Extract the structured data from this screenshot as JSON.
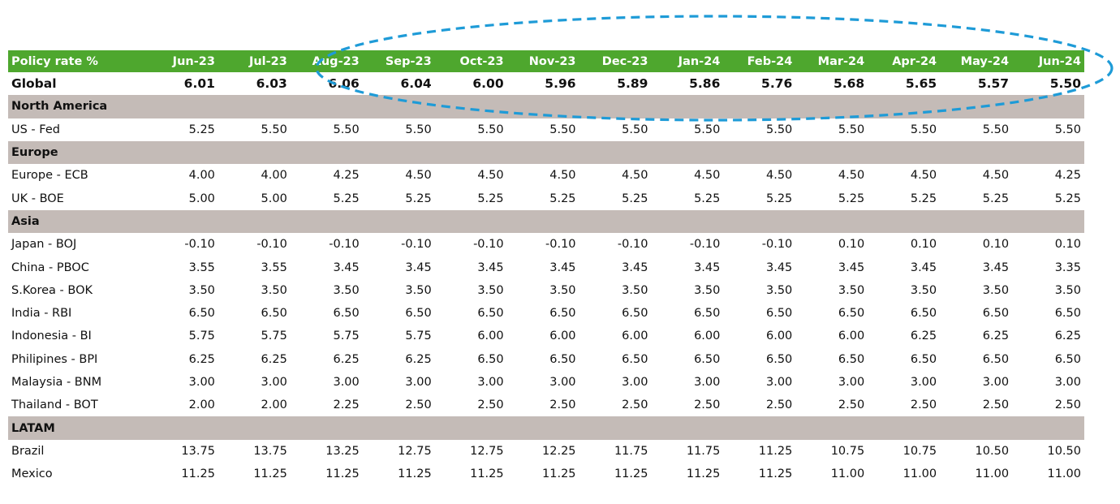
{
  "table": {
    "header_label": "Policy rate %",
    "months": [
      "Jun-23",
      "Jul-23",
      "Aug-23",
      "Sep-23",
      "Oct-23",
      "Nov-23",
      "Dec-23",
      "Jan-24",
      "Feb-24",
      "Mar-24",
      "Apr-24",
      "May-24",
      "Jun-24"
    ],
    "colors": {
      "header_bg": "#4ea72e",
      "header_text": "#ffffff",
      "region_bg": "#c4bbb7",
      "highlight": "#1e9bd7"
    },
    "rows": [
      {
        "kind": "global",
        "label": "Global",
        "values": [
          "6.01",
          "6.03",
          "6.06",
          "6.04",
          "6.00",
          "5.96",
          "5.89",
          "5.86",
          "5.76",
          "5.68",
          "5.65",
          "5.57",
          "5.50"
        ]
      },
      {
        "kind": "region",
        "label": "North America"
      },
      {
        "kind": "data",
        "label": "US - Fed",
        "values": [
          "5.25",
          "5.50",
          "5.50",
          "5.50",
          "5.50",
          "5.50",
          "5.50",
          "5.50",
          "5.50",
          "5.50",
          "5.50",
          "5.50",
          "5.50"
        ]
      },
      {
        "kind": "region",
        "label": "Europe"
      },
      {
        "kind": "data",
        "label": "Europe - ECB",
        "values": [
          "4.00",
          "4.00",
          "4.25",
          "4.50",
          "4.50",
          "4.50",
          "4.50",
          "4.50",
          "4.50",
          "4.50",
          "4.50",
          "4.50",
          "4.25"
        ]
      },
      {
        "kind": "data",
        "label": "UK - BOE",
        "values": [
          "5.00",
          "5.00",
          "5.25",
          "5.25",
          "5.25",
          "5.25",
          "5.25",
          "5.25",
          "5.25",
          "5.25",
          "5.25",
          "5.25",
          "5.25"
        ]
      },
      {
        "kind": "region",
        "label": "Asia"
      },
      {
        "kind": "data",
        "label": "Japan - BOJ",
        "values": [
          "-0.10",
          "-0.10",
          "-0.10",
          "-0.10",
          "-0.10",
          "-0.10",
          "-0.10",
          "-0.10",
          "-0.10",
          "0.10",
          "0.10",
          "0.10",
          "0.10"
        ]
      },
      {
        "kind": "data",
        "label": "China - PBOC",
        "values": [
          "3.55",
          "3.55",
          "3.45",
          "3.45",
          "3.45",
          "3.45",
          "3.45",
          "3.45",
          "3.45",
          "3.45",
          "3.45",
          "3.45",
          "3.35"
        ]
      },
      {
        "kind": "data",
        "label": "S.Korea - BOK",
        "values": [
          "3.50",
          "3.50",
          "3.50",
          "3.50",
          "3.50",
          "3.50",
          "3.50",
          "3.50",
          "3.50",
          "3.50",
          "3.50",
          "3.50",
          "3.50"
        ]
      },
      {
        "kind": "data",
        "label": "India - RBI",
        "values": [
          "6.50",
          "6.50",
          "6.50",
          "6.50",
          "6.50",
          "6.50",
          "6.50",
          "6.50",
          "6.50",
          "6.50",
          "6.50",
          "6.50",
          "6.50"
        ]
      },
      {
        "kind": "data",
        "label": "Indonesia - BI",
        "values": [
          "5.75",
          "5.75",
          "5.75",
          "5.75",
          "6.00",
          "6.00",
          "6.00",
          "6.00",
          "6.00",
          "6.00",
          "6.25",
          "6.25",
          "6.25"
        ]
      },
      {
        "kind": "data",
        "label": "Philipines - BPI",
        "values": [
          "6.25",
          "6.25",
          "6.25",
          "6.25",
          "6.50",
          "6.50",
          "6.50",
          "6.50",
          "6.50",
          "6.50",
          "6.50",
          "6.50",
          "6.50"
        ]
      },
      {
        "kind": "data",
        "label": "Malaysia - BNM",
        "values": [
          "3.00",
          "3.00",
          "3.00",
          "3.00",
          "3.00",
          "3.00",
          "3.00",
          "3.00",
          "3.00",
          "3.00",
          "3.00",
          "3.00",
          "3.00"
        ]
      },
      {
        "kind": "data",
        "label": "Thailand - BOT",
        "values": [
          "2.00",
          "2.00",
          "2.25",
          "2.50",
          "2.50",
          "2.50",
          "2.50",
          "2.50",
          "2.50",
          "2.50",
          "2.50",
          "2.50",
          "2.50"
        ]
      },
      {
        "kind": "region",
        "label": "LATAM"
      },
      {
        "kind": "data",
        "label": "Brazil",
        "values": [
          "13.75",
          "13.75",
          "13.25",
          "12.75",
          "12.75",
          "12.25",
          "11.75",
          "11.75",
          "11.25",
          "10.75",
          "10.75",
          "10.50",
          "10.50"
        ]
      },
      {
        "kind": "data",
        "label": "Mexico",
        "values": [
          "11.25",
          "11.25",
          "11.25",
          "11.25",
          "11.25",
          "11.25",
          "11.25",
          "11.25",
          "11.25",
          "11.00",
          "11.00",
          "11.00",
          "11.00"
        ]
      }
    ]
  }
}
